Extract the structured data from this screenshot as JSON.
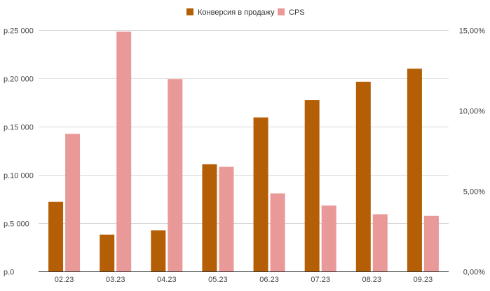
{
  "chart_data": {
    "type": "bar",
    "categories": [
      "02.23",
      "03.23",
      "04.23",
      "05.23",
      "06.23",
      "07.23",
      "08.23",
      "09.23"
    ],
    "series": [
      {
        "name": "Конверсия в продажу",
        "axis": "left",
        "color": "#b45f06",
        "values": [
          7200,
          3800,
          4250,
          11100,
          15950,
          17750,
          19650,
          21000
        ]
      },
      {
        "name": "CPS",
        "axis": "right",
        "color": "#ea9999",
        "values": [
          8.55,
          14.9,
          11.95,
          6.5,
          4.85,
          4.1,
          3.55,
          3.45
        ]
      }
    ],
    "y_left": {
      "lim": [
        0,
        25000
      ],
      "ticks": [
        0,
        5000,
        10000,
        15000,
        20000,
        25000
      ],
      "tick_labels": [
        "р.0",
        "р.5 000",
        "р.10 000",
        "р.15 000",
        "р.20 000",
        "р.25 000"
      ]
    },
    "y_right": {
      "lim": [
        0,
        15
      ],
      "ticks": [
        0,
        5,
        10,
        15
      ],
      "tick_labels": [
        "0,00%",
        "5,00%",
        "10,00%",
        "15,00%"
      ]
    },
    "grid": true,
    "legend_position": "top-center"
  }
}
